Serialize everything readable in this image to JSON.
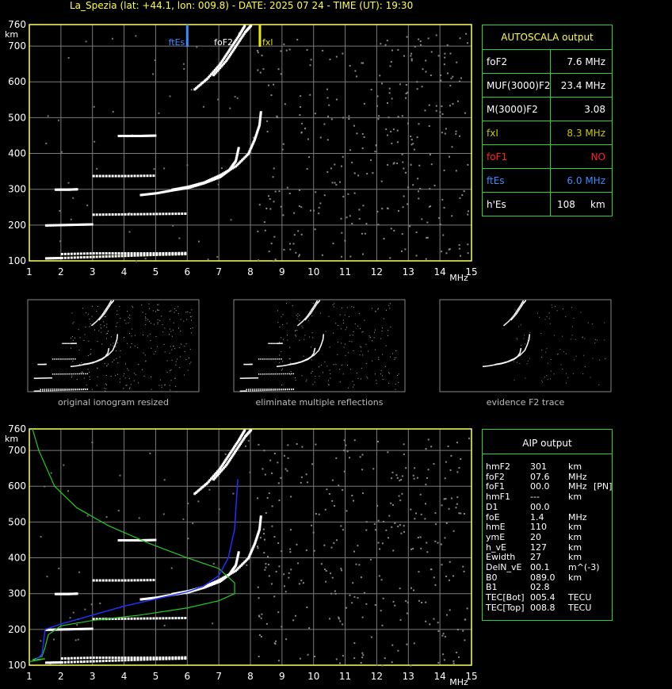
{
  "header": {
    "title": "La_Spezia (lat: +44.1, lon: 009.8) - DATE: 2025 07 24 - TIME (UT): 19:30"
  },
  "axes": {
    "y_unit": "km",
    "x_unit": "MHz",
    "y_ticks": [
      "760",
      "700",
      "600",
      "500",
      "400",
      "300",
      "200",
      "100"
    ],
    "x_ticks": [
      "1",
      "2",
      "3",
      "4",
      "5",
      "6",
      "7",
      "8",
      "9",
      "10",
      "11",
      "12",
      "13",
      "14",
      "15"
    ]
  },
  "markers": {
    "ftEs": "ftEs",
    "foF2": "foF2",
    "fxl": "fxl"
  },
  "autoscala": {
    "title": "AUTOSCALA output",
    "rows": [
      {
        "label": "foF2",
        "value": "7.6 MHz",
        "color": "#ffffff"
      },
      {
        "label": "MUF(3000)F2",
        "value": "23.4 MHz",
        "color": "#ffffff"
      },
      {
        "label": "M(3000)F2",
        "value": "3.08",
        "color": "#ffffff"
      },
      {
        "label": "fxI",
        "value": "8.3 MHz",
        "color": "#c8c800"
      },
      {
        "label": "foF1",
        "value": "NO",
        "color": "#ff2020"
      },
      {
        "label": "ftEs",
        "value": "6.0 MHz",
        "color": "#3a8cff"
      },
      {
        "label": "h'Es",
        "value": "108",
        "unit": "km",
        "color": "#ffffff"
      }
    ]
  },
  "thumbnails": [
    {
      "label": "original ionogram resized"
    },
    {
      "label": "eliminate multiple reflections"
    },
    {
      "label": "evidence F2 trace"
    }
  ],
  "aip": {
    "title": "AIP output",
    "rows": [
      {
        "k": "hmF2",
        "v": "301",
        "u": "km",
        "x": ""
      },
      {
        "k": "foF2",
        "v": "07.6",
        "u": "MHz",
        "x": ""
      },
      {
        "k": "foF1",
        "v": "00.0",
        "u": "MHz",
        "x": "[PN]"
      },
      {
        "k": "hmF1",
        "v": "---",
        "u": "km",
        "x": ""
      },
      {
        "k": "D1",
        "v": "00.0",
        "u": "",
        "x": ""
      },
      {
        "k": "foE",
        "v": "1.4",
        "u": "MHz",
        "x": ""
      },
      {
        "k": "hmE",
        "v": "110",
        "u": "km",
        "x": ""
      },
      {
        "k": "ymE",
        "v": "20",
        "u": "km",
        "x": ""
      },
      {
        "k": "h_vE",
        "v": "127",
        "u": "km",
        "x": ""
      },
      {
        "k": "Ewidth",
        "v": "27",
        "u": "km",
        "x": ""
      },
      {
        "k": "DelN_vE",
        "v": "00.1",
        "u": "m^(-3)",
        "x": ""
      },
      {
        "k": "B0",
        "v": "089.0",
        "u": "km",
        "x": ""
      },
      {
        "k": "B1",
        "v": "02.8",
        "u": "",
        "x": ""
      },
      {
        "k": "TEC[Bot]",
        "v": "005.4",
        "u": "TECU",
        "x": ""
      },
      {
        "k": "TEC[Top]",
        "v": "008.8",
        "u": "TECU",
        "x": ""
      }
    ]
  },
  "chart_data": {
    "type": "scatter",
    "xlim": [
      1,
      15
    ],
    "ylim": [
      100,
      760
    ],
    "grid": true,
    "markers_mhz": {
      "ftEs": 6.0,
      "foF2": 7.6,
      "fxl": 8.3
    },
    "traces": [
      {
        "name": "",
        "points": [
          [
            1.5,
            108
          ],
          [
            2,
            109
          ],
          [
            3,
            112
          ],
          [
            4,
            115
          ],
          [
            5,
            118
          ],
          [
            6,
            120
          ]
        ]
      },
      {
        "name": "",
        "points": [
          [
            2,
            120
          ],
          [
            3,
            122
          ],
          [
            4,
            122
          ],
          [
            5,
            122
          ],
          [
            6,
            123
          ]
        ]
      },
      {
        "name": "",
        "points": [
          [
            1.5,
            200
          ],
          [
            2,
            201
          ],
          [
            2.5,
            202
          ],
          [
            3,
            203
          ]
        ]
      },
      {
        "name": "",
        "points": [
          [
            3,
            230
          ],
          [
            4,
            231
          ],
          [
            5,
            232
          ],
          [
            6,
            233
          ]
        ]
      },
      {
        "name": "",
        "points": [
          [
            1.8,
            300
          ],
          [
            2.2,
            300
          ],
          [
            2.5,
            301
          ]
        ]
      },
      {
        "name": "",
        "points": [
          [
            3,
            338
          ],
          [
            4,
            338
          ],
          [
            5,
            339
          ]
        ]
      },
      {
        "name": "",
        "points": [
          [
            3.8,
            450
          ],
          [
            4.5,
            450
          ],
          [
            5,
            451
          ]
        ]
      },
      {
        "name": "",
        "points": [
          [
            4.5,
            285
          ],
          [
            5,
            290
          ],
          [
            5.5,
            298
          ],
          [
            6,
            305
          ],
          [
            6.5,
            318
          ],
          [
            7,
            335
          ],
          [
            7.3,
            355
          ],
          [
            7.5,
            380
          ],
          [
            7.6,
            420
          ]
        ]
      },
      {
        "name": "",
        "points": [
          [
            5.5,
            300
          ],
          [
            6,
            308
          ],
          [
            6.5,
            320
          ],
          [
            7,
            340
          ],
          [
            7.5,
            365
          ],
          [
            7.9,
            400
          ],
          [
            8.1,
            440
          ],
          [
            8.25,
            480
          ],
          [
            8.3,
            520
          ]
        ]
      },
      {
        "name": "",
        "points": [
          [
            6.2,
            580
          ],
          [
            6.6,
            610
          ],
          [
            7,
            650
          ],
          [
            7.3,
            690
          ],
          [
            7.6,
            730
          ],
          [
            7.8,
            760
          ]
        ]
      },
      {
        "name": "",
        "points": [
          [
            6.8,
            620
          ],
          [
            7.2,
            660
          ],
          [
            7.5,
            700
          ],
          [
            7.8,
            740
          ],
          [
            8,
            760
          ]
        ]
      }
    ],
    "profile_green": [
      [
        1.1,
        760
      ],
      [
        1.3,
        700
      ],
      [
        1.8,
        600
      ],
      [
        2.5,
        540
      ],
      [
        3.5,
        490
      ],
      [
        4.8,
        440
      ],
      [
        6,
        400
      ],
      [
        7,
        370
      ],
      [
        7.5,
        330
      ],
      [
        7.5,
        300
      ],
      [
        7,
        280
      ],
      [
        6,
        260
      ],
      [
        4.5,
        240
      ],
      [
        3,
        225
      ],
      [
        2,
        210
      ],
      [
        1.6,
        185
      ],
      [
        1.5,
        150
      ],
      [
        1.4,
        125
      ],
      [
        1.1,
        115
      ],
      [
        1.5,
        118
      ],
      [
        1,
        110
      ]
    ],
    "profile_blue": [
      [
        1.2,
        115
      ],
      [
        1.4,
        130
      ],
      [
        1.5,
        200
      ],
      [
        2,
        215
      ],
      [
        3,
        240
      ],
      [
        4,
        265
      ],
      [
        5,
        285
      ],
      [
        6,
        305
      ],
      [
        6.5,
        320
      ],
      [
        7,
        350
      ],
      [
        7.3,
        400
      ],
      [
        7.5,
        480
      ],
      [
        7.6,
        620
      ]
    ]
  }
}
